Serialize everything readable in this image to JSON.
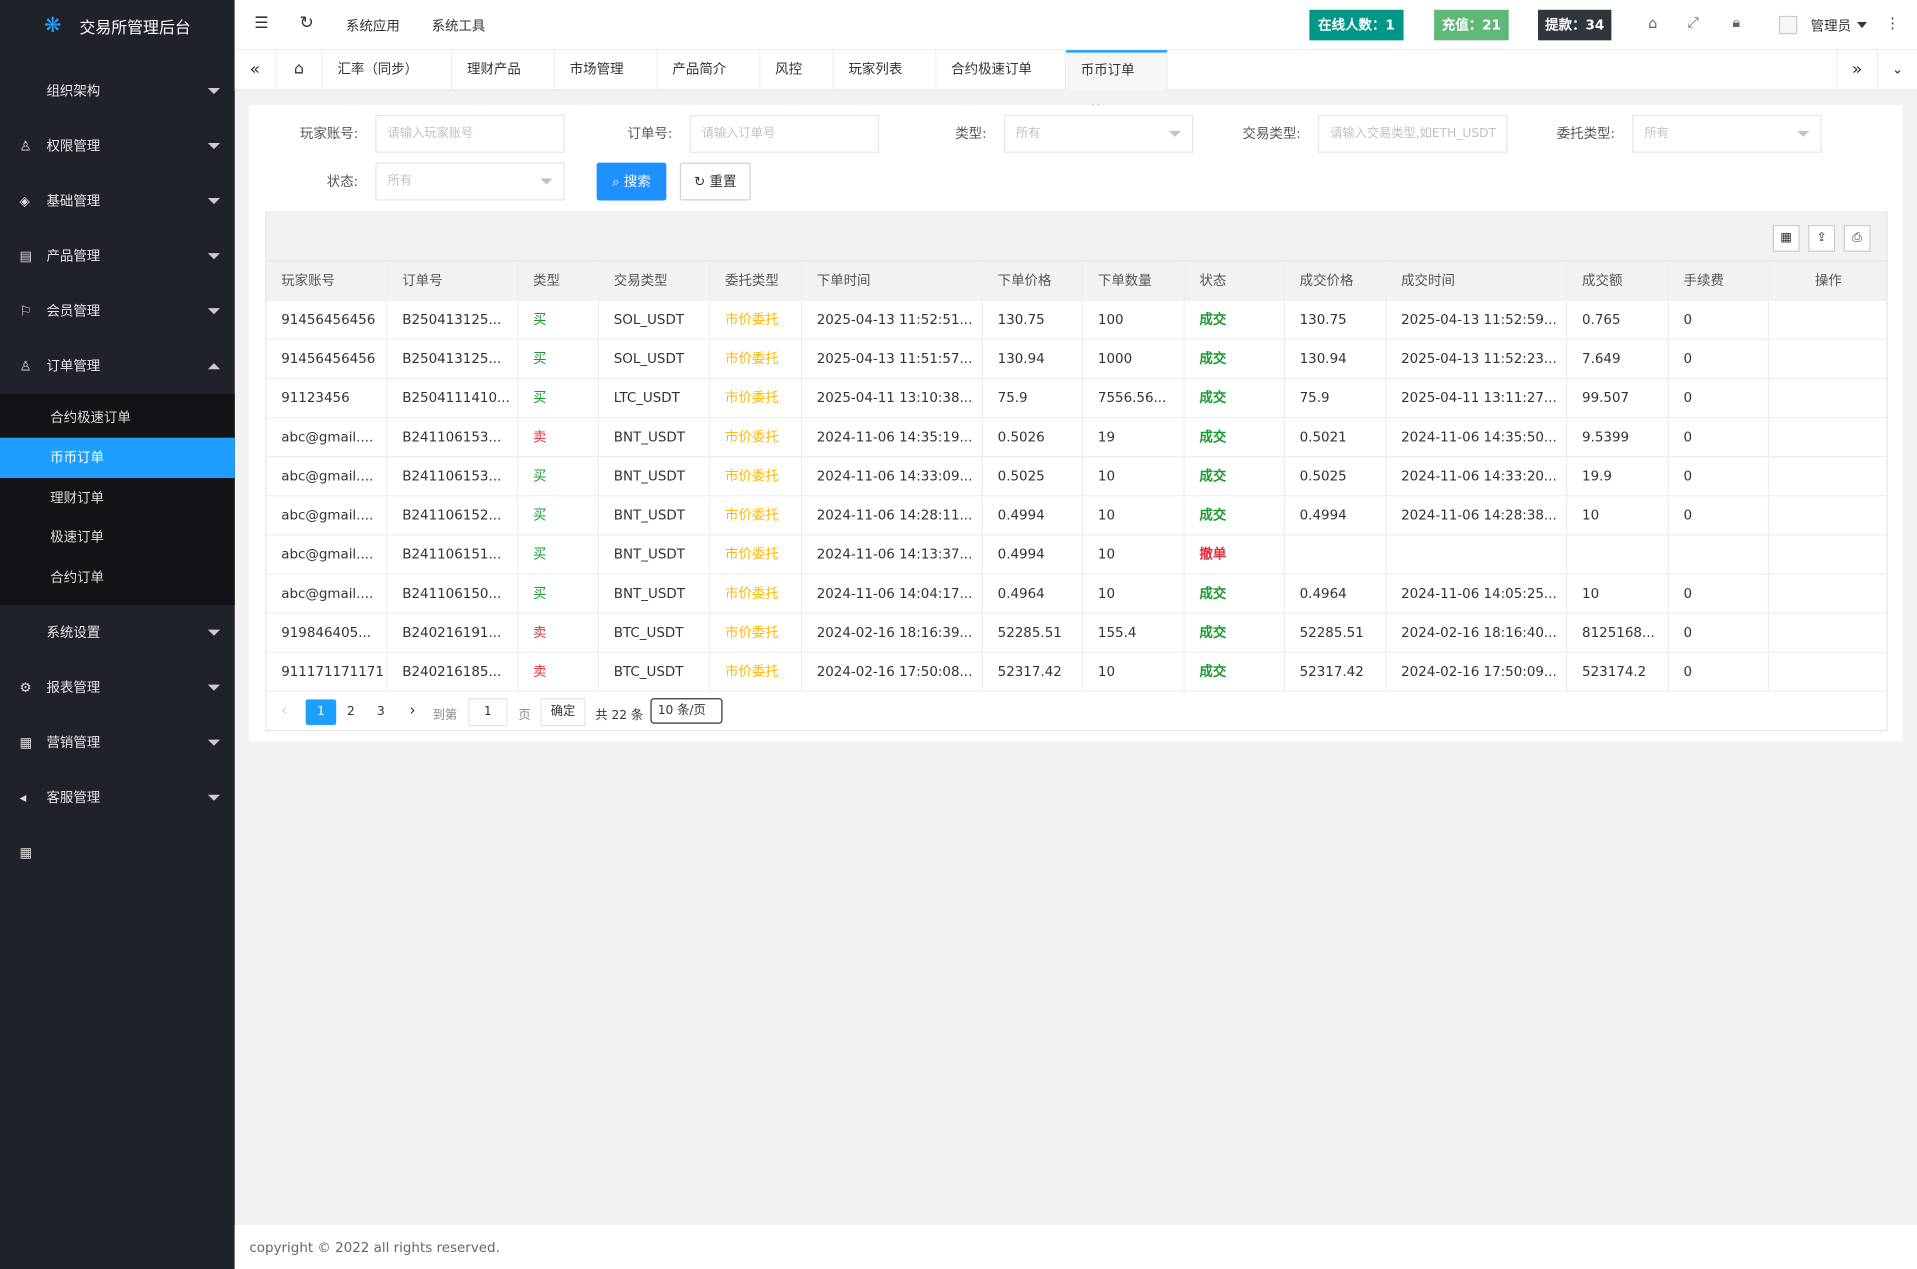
{
  "sidebar": {
    "brand": "交易所管理后台",
    "menu": [
      {
        "label": "组织架构",
        "icon": "♙"
      },
      {
        "label": "权限管理",
        "icon": "◈"
      },
      {
        "label": "基础管理",
        "icon": "▤"
      },
      {
        "label": "产品管理",
        "icon": "⚐"
      },
      {
        "label": "会员管理",
        "icon": "♙"
      },
      {
        "label": "订单管理",
        "icon": "▦",
        "open": true,
        "active_child": 1,
        "children": [
          "合约极速订单",
          "币币订单",
          "理财订单",
          "极速订单",
          "合约订单"
        ]
      },
      {
        "label": "系统设置",
        "icon": "⚙"
      },
      {
        "label": "报表管理",
        "icon": "▦"
      },
      {
        "label": "营销管理",
        "icon": "◂"
      },
      {
        "label": "客服管理",
        "icon": "▦"
      }
    ]
  },
  "header": {
    "nav": [
      "系统应用",
      "系统工具"
    ],
    "badges": [
      {
        "text": "在线人数：1",
        "color": "#009688"
      },
      {
        "text": "充值：21",
        "color": "#5fb878"
      },
      {
        "text": "提款：34",
        "color": "#2f363c"
      }
    ],
    "user": "管理员"
  },
  "tabs": {
    "items": [
      "汇率（同步）",
      "理财产品",
      "市场管理",
      "产品简介",
      "风控",
      "玩家列表",
      "合约极速订单",
      "币币订单"
    ],
    "active": 7
  },
  "filters": [
    {
      "label": "玩家账号:",
      "placeholder": "请输入玩家账号"
    },
    {
      "label": "订单号:",
      "placeholder": "请输入订单号"
    },
    {
      "label": "类型:",
      "placeholder": "所有",
      "select": true
    },
    {
      "label": "交易类型:",
      "placeholder": "请输入交易类型,如ETH_USDT"
    },
    {
      "label": "委托类型:",
      "placeholder": "所有",
      "select": true
    },
    {
      "label": "状态:",
      "placeholder": "所有",
      "select": true
    }
  ],
  "buttons": {
    "search": "搜索",
    "reset": "重置"
  },
  "table": {
    "columns": [
      "玩家账号",
      "订单号",
      "类型",
      "交易类型",
      "委托类型",
      "下单时间",
      "下单价格",
      "下单数量",
      "状态",
      "成交价格",
      "成交时间",
      "成交额",
      "手续费",
      "操作"
    ],
    "rows": [
      [
        "91456456456",
        "B250413125...",
        "买",
        "SOL_USDT",
        "市价委托",
        "2025-04-13 11:52:51...",
        "130.75",
        "100",
        "成交",
        "130.75",
        "2025-04-13 11:52:59...",
        "0.765",
        "0"
      ],
      [
        "91456456456",
        "B250413125...",
        "买",
        "SOL_USDT",
        "市价委托",
        "2025-04-13 11:51:57...",
        "130.94",
        "1000",
        "成交",
        "130.94",
        "2025-04-13 11:52:23...",
        "7.649",
        "0"
      ],
      [
        "91123456",
        "B2504111410...",
        "买",
        "LTC_USDT",
        "市价委托",
        "2025-04-11 13:10:38...",
        "75.9",
        "7556.56...",
        "成交",
        "75.9",
        "2025-04-11 13:11:27...",
        "99.507",
        "0"
      ],
      [
        "abc@gmail....",
        "B241106153...",
        "卖",
        "BNT_USDT",
        "市价委托",
        "2024-11-06 14:35:19...",
        "0.5026",
        "19",
        "成交",
        "0.5021",
        "2024-11-06 14:35:50...",
        "9.5399",
        "0"
      ],
      [
        "abc@gmail....",
        "B241106153...",
        "买",
        "BNT_USDT",
        "市价委托",
        "2024-11-06 14:33:09...",
        "0.5025",
        "10",
        "成交",
        "0.5025",
        "2024-11-06 14:33:20...",
        "19.9",
        "0"
      ],
      [
        "abc@gmail....",
        "B241106152...",
        "买",
        "BNT_USDT",
        "市价委托",
        "2024-11-06 14:28:11...",
        "0.4994",
        "10",
        "成交",
        "0.4994",
        "2024-11-06 14:28:38...",
        "10",
        "0"
      ],
      [
        "abc@gmail....",
        "B241106151...",
        "买",
        "BNT_USDT",
        "市价委托",
        "2024-11-06 14:13:37...",
        "0.4994",
        "10",
        "撤单",
        null,
        null,
        null,
        null
      ],
      [
        "abc@gmail....",
        "B241106150...",
        "买",
        "BNT_USDT",
        "市价委托",
        "2024-11-06 14:04:17...",
        "0.4964",
        "10",
        "成交",
        "0.4964",
        "2024-11-06 14:05:25...",
        "10",
        "0"
      ],
      [
        "919846405...",
        "B240216191...",
        "卖",
        "BTC_USDT",
        "市价委托",
        "2024-02-16 18:16:39...",
        "52285.51",
        "155.4",
        "成交",
        "52285.51",
        "2024-02-16 18:16:40...",
        "8125168...",
        "0"
      ],
      [
        "911171171171",
        "B240216185...",
        "卖",
        "BTC_USDT",
        "市价委托",
        "2024-02-16 17:50:08...",
        "52317.42",
        "10",
        "成交",
        "52317.42",
        "2024-02-16 17:50:09...",
        "523174.2",
        "0"
      ]
    ]
  },
  "pagination": {
    "pages": [
      1,
      2,
      3
    ],
    "current": 1,
    "goto": "到第",
    "input": "1",
    "page_word": "页",
    "confirm": "确定",
    "total": "共 22 条",
    "size": "10 条/页"
  },
  "footer": "copyright © 2022 all rights reserved."
}
